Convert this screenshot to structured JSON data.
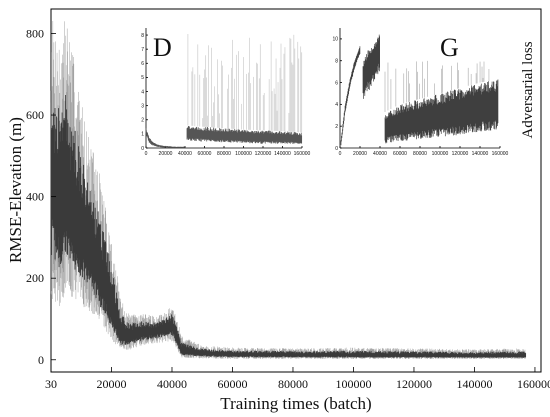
{
  "chart_data": {
    "type": "line",
    "xlabel": "Training times (batch)",
    "ylabel": "RMSE-Elevation (m)",
    "xlim": [
      0,
      162000
    ],
    "ylim": [
      -30,
      860
    ],
    "x_ticks": [
      0,
      20000,
      40000,
      60000,
      80000,
      100000,
      120000,
      140000,
      160000
    ],
    "x_tick_labels": [
      "30",
      "20000",
      "40000",
      "60000",
      "80000",
      "100000",
      "120000",
      "140000",
      "160000"
    ],
    "y_ticks": [
      0,
      200,
      400,
      600,
      800
    ],
    "y_tick_labels": [
      "0",
      "200",
      "400",
      "600",
      "800"
    ],
    "series": [
      {
        "name": "",
        "color": "#3a3a3a",
        "style": "dense noisy band",
        "x": [
          30,
          3000,
          5000,
          8000,
          12000,
          16000,
          20000,
          23000,
          26000,
          30000,
          35000,
          40000,
          42000,
          43000,
          50000,
          60000,
          80000,
          100000,
          120000,
          140000,
          157000
        ],
        "upper": [
          850,
          780,
          860,
          720,
          560,
          460,
          300,
          150,
          110,
          115,
          105,
          130,
          95,
          60,
          35,
          30,
          28,
          30,
          28,
          26,
          28
        ],
        "center": [
          420,
          360,
          380,
          320,
          270,
          200,
          130,
          60,
          55,
          65,
          70,
          85,
          45,
          20,
          15,
          12,
          11,
          10,
          10,
          9,
          9
        ],
        "lower": [
          150,
          130,
          160,
          150,
          120,
          90,
          50,
          20,
          25,
          35,
          40,
          45,
          20,
          5,
          3,
          2,
          2,
          2,
          2,
          2,
          2
        ]
      }
    ],
    "insets": [
      {
        "label": "D",
        "type": "line",
        "xlim": [
          0,
          160000
        ],
        "ylim": [
          0,
          8.5
        ],
        "x_ticks": [
          0,
          20000,
          40000,
          60000,
          80000,
          100000,
          120000,
          140000,
          160000
        ],
        "x_tick_labels": [
          "0",
          "20000",
          "40000",
          "60000",
          "80000",
          "100000",
          "120000",
          "140000",
          "160000"
        ],
        "y_ticks": [
          0,
          1,
          2,
          3,
          4,
          5,
          6,
          7,
          8
        ],
        "y_tick_labels": [
          "0",
          "1",
          "2",
          "3",
          "4",
          "5",
          "6",
          "7",
          "8"
        ],
        "series": [
          {
            "name": "",
            "color": "#555555",
            "segments": [
              {
                "x": [
                  0,
                  1000,
                  3000,
                  6000,
                  10000,
                  15000,
                  20000,
                  30000,
                  40000
                ],
                "center": [
                  1.2,
                  1.0,
                  0.6,
                  0.35,
                  0.2,
                  0.12,
                  0.08,
                  0.05,
                  0.05
                ],
                "upper": [
                  1.5,
                  1.2,
                  0.8,
                  0.5,
                  0.3,
                  0.2,
                  0.15,
                  0.1,
                  0.1
                ],
                "lower": [
                  0.9,
                  0.8,
                  0.4,
                  0.2,
                  0.1,
                  0.05,
                  0.03,
                  0.02,
                  0.02
                ]
              },
              {
                "x": [
                  42000,
                  60000,
                  80000,
                  100000,
                  120000,
                  140000,
                  160000
                ],
                "center": [
                  1.0,
                  0.9,
                  0.8,
                  0.75,
                  0.7,
                  0.65,
                  0.6
                ],
                "upper": [
                  1.6,
                  1.5,
                  1.4,
                  1.3,
                  1.25,
                  1.2,
                  1.1
                ],
                "lower": [
                  0.5,
                  0.45,
                  0.4,
                  0.35,
                  0.3,
                  0.3,
                  0.3
                ],
                "spike_max": 8.2
              }
            ]
          }
        ]
      },
      {
        "label": "G",
        "side_label": "Adversarial loss",
        "type": "line",
        "xlim": [
          0,
          160000
        ],
        "ylim": [
          0,
          11
        ],
        "x_ticks": [
          0,
          20000,
          40000,
          60000,
          80000,
          100000,
          120000,
          140000,
          160000
        ],
        "x_tick_labels": [
          "0",
          "20000",
          "40000",
          "60000",
          "80000",
          "100000",
          "120000",
          "140000",
          "160000"
        ],
        "y_ticks": [
          0,
          2,
          4,
          6,
          8,
          10
        ],
        "y_tick_labels": [
          "0",
          "2",
          "4",
          "6",
          "8",
          "10"
        ],
        "series": [
          {
            "name": "",
            "color": "#3f3f3f",
            "segments": [
              {
                "x": [
                  1000,
                  5000,
                  10000,
                  15000,
                  20000
                ],
                "center": [
                  0.5,
                  3.5,
                  6.0,
                  7.8,
                  9.0
                ],
                "upper": [
                  0.8,
                  3.9,
                  6.4,
                  8.2,
                  9.4
                ],
                "lower": [
                  0.2,
                  3.1,
                  5.6,
                  7.4,
                  8.6
                ]
              },
              {
                "x": [
                  23000,
                  28000,
                  32000,
                  36000,
                  40000
                ],
                "center": [
                  6.5,
                  7.5,
                  8.0,
                  8.5,
                  9.5
                ],
                "upper": [
                  8.0,
                  9.0,
                  9.5,
                  10.0,
                  10.5
                ],
                "lower": [
                  4.0,
                  5.0,
                  5.5,
                  6.5,
                  7.0
                ]
              },
              {
                "x": [
                  45000,
                  60000,
                  80000,
                  100000,
                  120000,
                  140000,
                  158000
                ],
                "center": [
                  1.8,
                  2.1,
                  2.5,
                  2.8,
                  3.2,
                  3.5,
                  3.7
                ],
                "upper": [
                  3.3,
                  4.0,
                  4.5,
                  5.0,
                  5.5,
                  6.0,
                  6.3
                ],
                "lower": [
                  0.4,
                  0.6,
                  0.8,
                  1.0,
                  1.2,
                  1.5,
                  1.6
                ],
                "spike_max": 8.0
              }
            ]
          }
        ]
      }
    ]
  }
}
